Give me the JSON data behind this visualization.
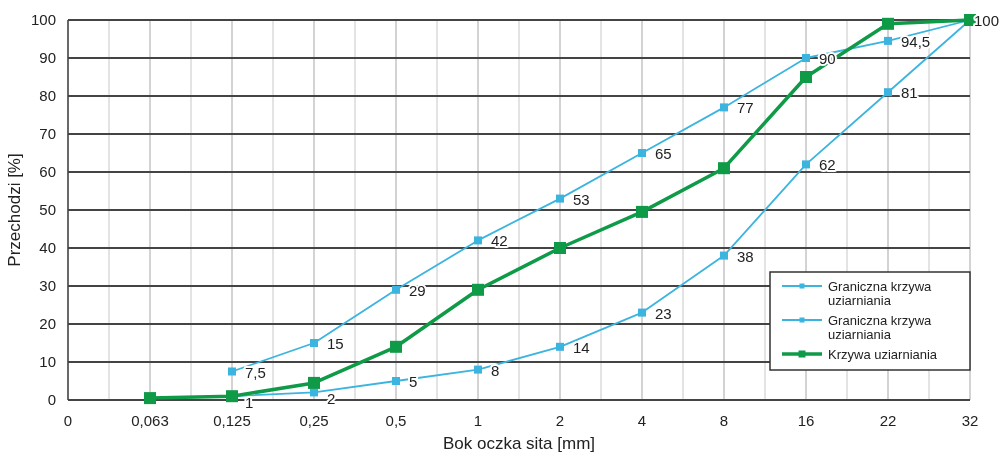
{
  "chart_data": {
    "type": "line",
    "xlabel": "Bok oczka sita [mm]",
    "ylabel": "Przechodzi [%]",
    "categories": [
      "0",
      "0,063",
      "0,125",
      "0,25",
      "0,5",
      "1",
      "2",
      "4",
      "8",
      "16",
      "22",
      "32"
    ],
    "ylim": [
      0,
      100
    ],
    "yticks": [
      0,
      10,
      20,
      30,
      40,
      50,
      60,
      70,
      80,
      90,
      100
    ],
    "grid": true,
    "legend": "bottom right",
    "marker": "square",
    "line_style": "solid",
    "series": [
      {
        "name": "Graniczna krzywa uziarniania",
        "color": "#3bb4e0",
        "values": [
          null,
          null,
          7.5,
          15,
          29,
          42,
          53,
          65,
          77,
          90,
          94.5,
          100
        ],
        "value_labels": [
          null,
          null,
          "7,5",
          "15",
          "29",
          "42",
          "53",
          "65",
          "77",
          "90",
          "94,5",
          "100"
        ]
      },
      {
        "name": "Graniczna krzywa uziarniania",
        "color": "#3bb4e0",
        "values": [
          null,
          null,
          1,
          2,
          5,
          8,
          14,
          23,
          38,
          62,
          81,
          100
        ],
        "value_labels": [
          null,
          null,
          "1",
          "2",
          "5",
          "8",
          "14",
          "23",
          "38",
          "62",
          "81",
          null
        ]
      },
      {
        "name": "Krzywa uziarniania",
        "color": "#0f9a48",
        "values": [
          null,
          0.5,
          1,
          4.5,
          14,
          29,
          40,
          49.5,
          61,
          85,
          99,
          100
        ]
      }
    ]
  }
}
